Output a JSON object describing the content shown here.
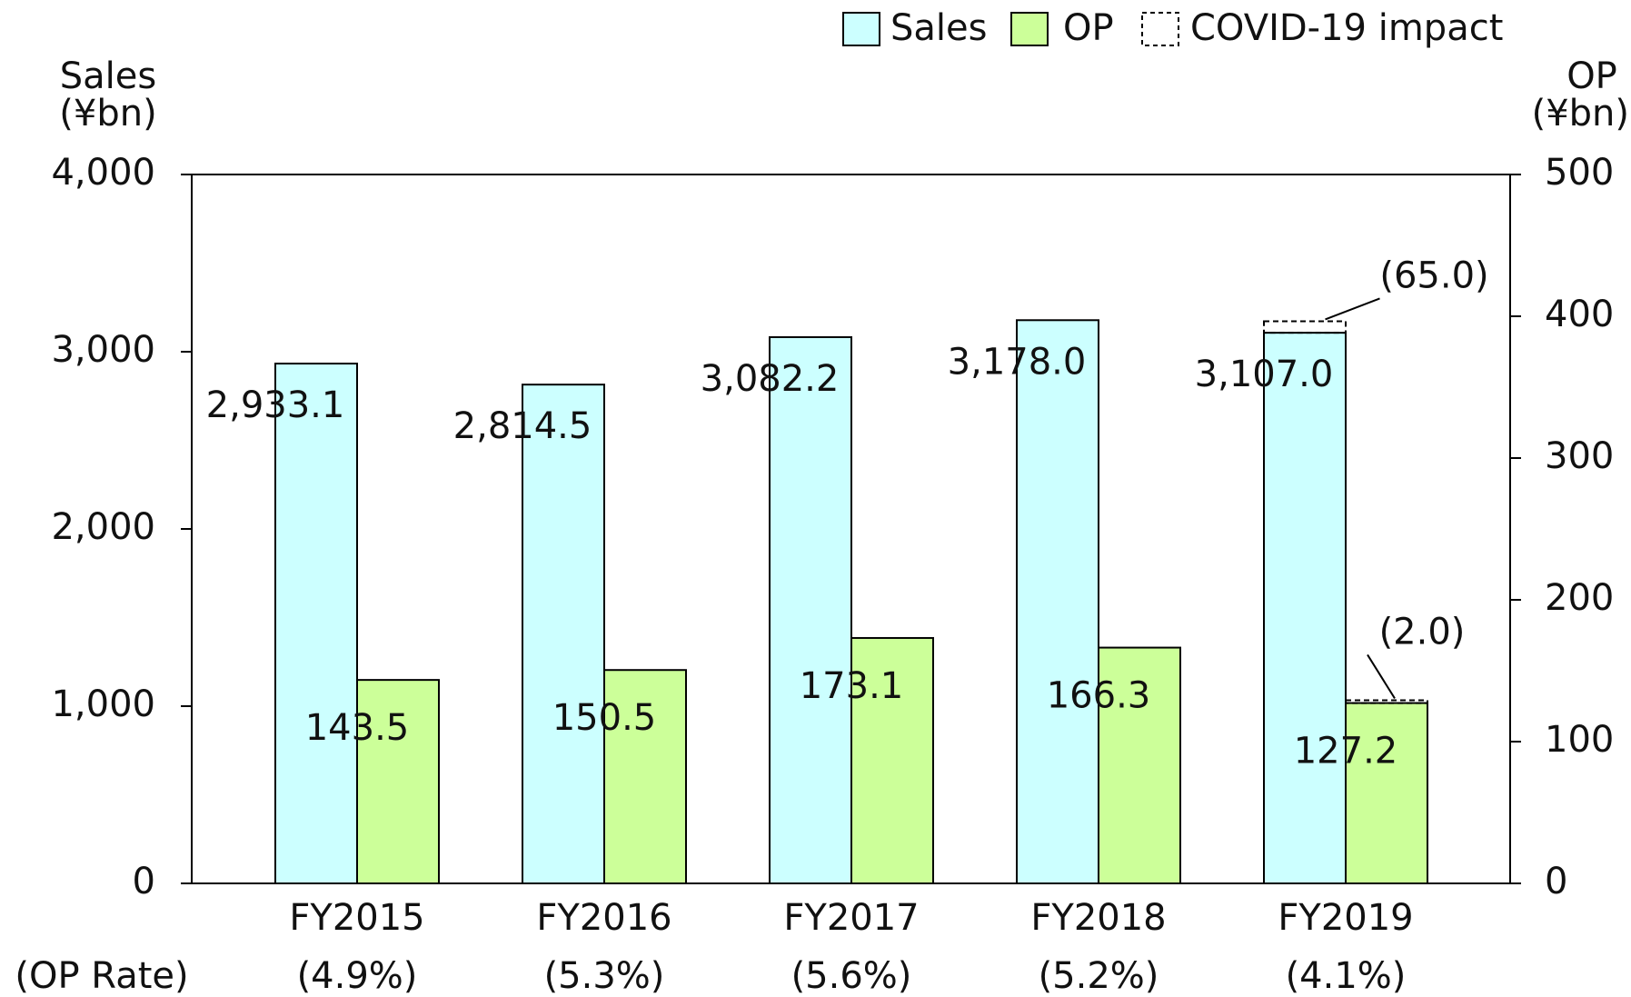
{
  "chart_data": {
    "type": "bar",
    "ylabel": [
      "Sales",
      "(¥bn)"
    ],
    "y2label": [
      "OP",
      "(¥bn)"
    ],
    "categories": [
      "FY2015",
      "FY2016",
      "FY2017",
      "FY2018",
      "FY2019"
    ],
    "series": [
      {
        "name": "Sales",
        "color": "#ccffff",
        "values": [
          2933.1,
          2814.5,
          3082.2,
          3178.0,
          3107.0
        ],
        "value_labels": [
          "2,933.1",
          "2,814.5",
          "3,082.2",
          "3,178.0",
          "3,107.0"
        ]
      },
      {
        "name": "OP",
        "color": "#ccff99",
        "axis": "y2",
        "values": [
          143.5,
          150.5,
          173.1,
          166.3,
          127.2
        ]
      }
    ],
    "impact": {
      "name": "COVID-19 impact",
      "sales": {
        "values": [
          null,
          null,
          null,
          null,
          65.0
        ],
        "value_labels": [
          null,
          null,
          null,
          null,
          "(65.0)"
        ]
      },
      "op": {
        "values": [
          null,
          null,
          null,
          null,
          2.0
        ],
        "value_labels": [
          null,
          null,
          null,
          null,
          "(2.0)"
        ]
      }
    },
    "op_rate": {
      "label": "(OP Rate)",
      "values": [
        4.9,
        5.3,
        5.6,
        5.2,
        4.1
      ],
      "value_labels": [
        "(4.9%)",
        "(5.3%)",
        "(5.6%)",
        "(5.2%)",
        "(4.1%)"
      ]
    },
    "ylim": [
      0,
      4000
    ],
    "yticks": [
      0,
      {
        "value": 1000,
        "label": "1,000"
      },
      {
        "value": 2000,
        "label": "2,000"
      },
      {
        "value": 3000,
        "label": "3,000"
      },
      {
        "value": 4000,
        "label": "4,000"
      }
    ],
    "y2lim": [
      0,
      500
    ],
    "y2ticks": [
      0,
      100,
      200,
      300,
      400,
      500
    ],
    "legend": "top-right"
  }
}
